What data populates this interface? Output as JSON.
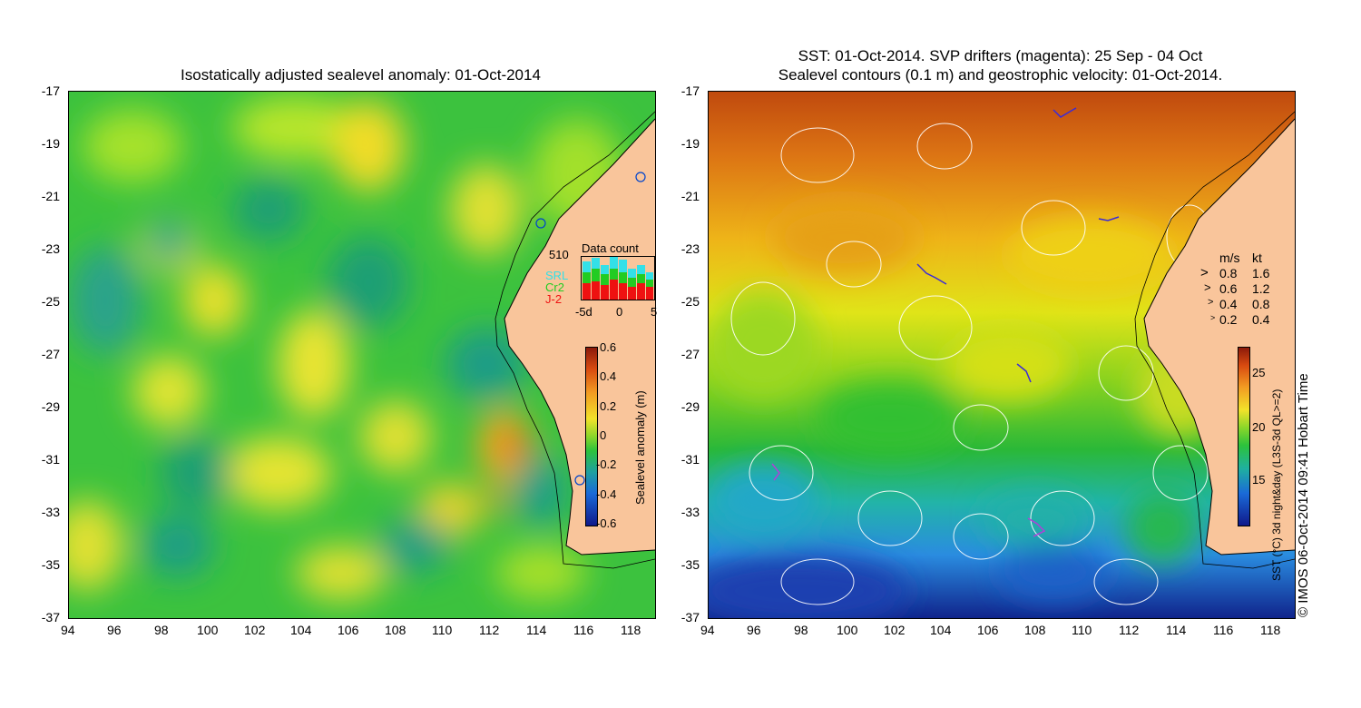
{
  "left_panel": {
    "title": "Isostatically adjusted sealevel anomaly: 01-Oct-2014",
    "colorbar": {
      "label": "Sealevel anomaly (m)",
      "ticks": [
        "0.6",
        "0.4",
        "0.2",
        "0",
        "-0.2",
        "-0.4",
        "-0.6"
      ]
    },
    "data_count": {
      "title": "Data count",
      "max_label": "510",
      "series": [
        {
          "name": "SRL",
          "color": "#33e0e8"
        },
        {
          "name": "Cr2",
          "color": "#22cc22"
        },
        {
          "name": "J-2",
          "color": "#ee1111"
        }
      ],
      "x_ticks": [
        "-5d",
        "0",
        "5"
      ]
    }
  },
  "right_panel": {
    "title_line1": "SST: 01-Oct-2014. SVP drifters (magenta): 25 Sep - 04 Oct",
    "title_line2": "Sealevel contours (0.1 m) and geostrophic velocity: 01-Oct-2014.",
    "speed_legend": {
      "header_ms": "m/s",
      "header_kt": "kt",
      "rows": [
        {
          "ms": "0.8",
          "kt": "1.6"
        },
        {
          "ms": "0.6",
          "kt": "1.2"
        },
        {
          "ms": "0.4",
          "kt": "0.8"
        },
        {
          "ms": "0.2",
          "kt": "0.4"
        }
      ]
    },
    "colorbar": {
      "label": "SST (°C) 3d night&day (L3S-3d QL>=2)",
      "ticks": [
        "25",
        "20",
        "15"
      ]
    }
  },
  "y_ticks": [
    "-17",
    "-19",
    "-21",
    "-23",
    "-25",
    "-27",
    "-29",
    "-31",
    "-33",
    "-35",
    "-37"
  ],
  "x_ticks": [
    "94",
    "96",
    "98",
    "100",
    "102",
    "104",
    "106",
    "108",
    "110",
    "112",
    "114",
    "116",
    "118"
  ],
  "credit": "© IMOS 06-Oct-2014 09:41 Hobart Time",
  "colors": {
    "land": "#f9c59b",
    "sla_base": "#2ec84a",
    "sst_warm": "#c85a10",
    "sst_mid": "#d2e81a",
    "sst_cool": "#2ab8a0",
    "sst_cold": "#1a5cd8"
  }
}
